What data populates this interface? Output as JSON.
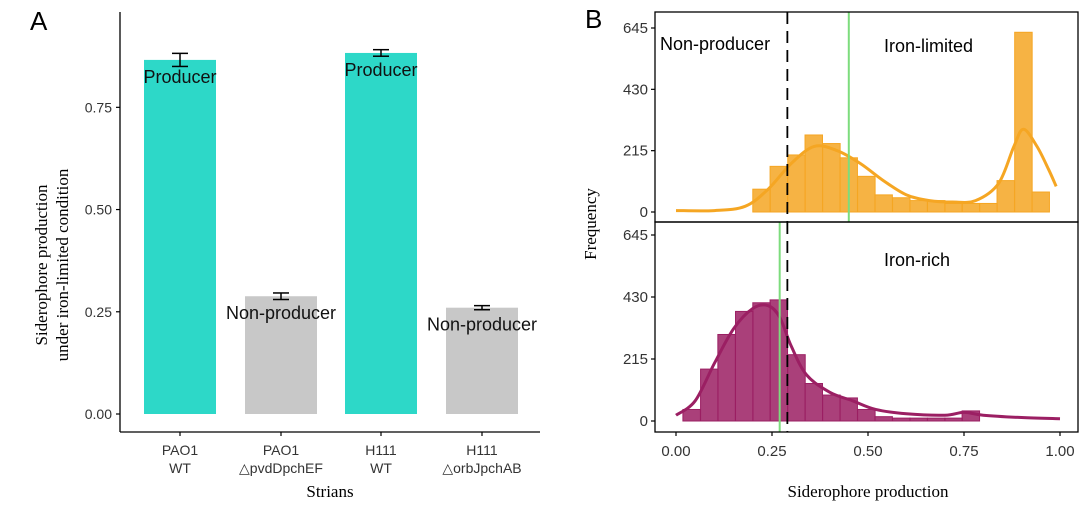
{
  "chart_data": [
    {
      "type": "bar",
      "panel_label": "A",
      "title": "",
      "xlabel": "Strians",
      "ylabel_lines": [
        "Siderophore production",
        "under iron-limited condition"
      ],
      "categories": [
        {
          "line1": "PAO1",
          "line2": "WT"
        },
        {
          "line1": "PAO1",
          "line2": "△pvdDpchEF"
        },
        {
          "line1": "H111",
          "line2": "WT"
        },
        {
          "line1": "H111",
          "line2": "△orbJpchAB"
        }
      ],
      "values": [
        0.866,
        0.288,
        0.883,
        0.26
      ],
      "errors": [
        0.016,
        0.008,
        0.008,
        0.005
      ],
      "bar_labels": [
        "Producer",
        "Non-producer",
        "Producer",
        "Non-producer"
      ],
      "bar_colors": [
        "#2dd8c8",
        "#c8c8c8",
        "#2dd8c8",
        "#c8c8c8"
      ],
      "yticks": [
        "0.00",
        "0.25",
        "0.50",
        "0.75"
      ],
      "ylim": [
        0,
        0.95
      ]
    },
    {
      "type": "histogram",
      "panel_label": "B",
      "xlabel": "Siderophore production",
      "ylabel": "Frequency",
      "xlim": [
        -0.05,
        1.05
      ],
      "xticks": [
        "0.00",
        "0.25",
        "0.50",
        "0.75",
        "1.00"
      ],
      "threshold_x": 0.29,
      "threshold_label": "Non-producer",
      "bin_width": 0.0455,
      "panels": [
        {
          "name": "Iron-limited",
          "color": "#f5a623",
          "mean_x": 0.45,
          "ylim": [
            -10,
            660
          ],
          "yticks": [
            "0",
            "215",
            "430",
            "645"
          ],
          "bin_starts": [
            0.2,
            0.245,
            0.291,
            0.336,
            0.382,
            0.427,
            0.473,
            0.518,
            0.564,
            0.609,
            0.655,
            0.7,
            0.745,
            0.791,
            0.836,
            0.882,
            0.927
          ],
          "counts": [
            80,
            160,
            200,
            270,
            240,
            190,
            125,
            60,
            50,
            40,
            40,
            30,
            30,
            30,
            110,
            630,
            70
          ],
          "density_curve": [
            [
              0.0,
              5
            ],
            [
              0.1,
              5
            ],
            [
              0.18,
              20
            ],
            [
              0.24,
              80
            ],
            [
              0.3,
              170
            ],
            [
              0.36,
              230
            ],
            [
              0.42,
              215
            ],
            [
              0.48,
              170
            ],
            [
              0.54,
              110
            ],
            [
              0.6,
              60
            ],
            [
              0.66,
              40
            ],
            [
              0.72,
              35
            ],
            [
              0.78,
              40
            ],
            [
              0.84,
              100
            ],
            [
              0.88,
              230
            ],
            [
              0.905,
              290
            ],
            [
              0.94,
              230
            ],
            [
              0.97,
              150
            ],
            [
              0.99,
              90
            ]
          ]
        },
        {
          "name": "Iron-rich",
          "color": "#9b1f63",
          "mean_x": 0.27,
          "ylim": [
            -10,
            660
          ],
          "yticks": [
            "0",
            "215",
            "430",
            "645"
          ],
          "bin_starts": [
            0.018,
            0.064,
            0.109,
            0.155,
            0.2,
            0.245,
            0.291,
            0.336,
            0.382,
            0.427,
            0.473,
            0.518,
            0.564,
            0.609,
            0.655,
            0.7,
            0.745
          ],
          "counts": [
            40,
            180,
            300,
            380,
            410,
            420,
            230,
            130,
            90,
            80,
            40,
            15,
            10,
            10,
            10,
            10,
            35
          ],
          "density_curve": [
            [
              0.0,
              20
            ],
            [
              0.05,
              70
            ],
            [
              0.1,
              200
            ],
            [
              0.15,
              320
            ],
            [
              0.2,
              390
            ],
            [
              0.24,
              400
            ],
            [
              0.27,
              360
            ],
            [
              0.3,
              260
            ],
            [
              0.34,
              160
            ],
            [
              0.4,
              100
            ],
            [
              0.46,
              70
            ],
            [
              0.52,
              40
            ],
            [
              0.6,
              25
            ],
            [
              0.7,
              20
            ],
            [
              0.75,
              30
            ],
            [
              0.8,
              20
            ],
            [
              0.9,
              12
            ],
            [
              1.0,
              8
            ]
          ]
        }
      ]
    }
  ]
}
